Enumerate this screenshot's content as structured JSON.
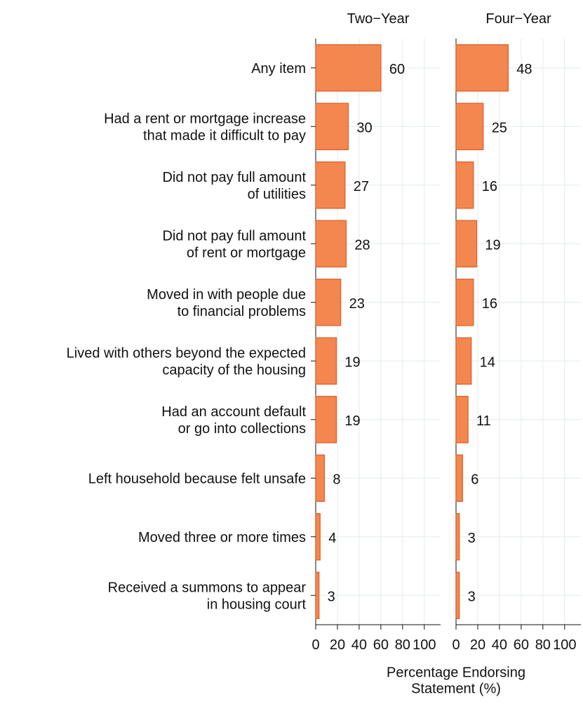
{
  "chart_data": {
    "type": "bar",
    "orientation": "horizontal",
    "categories": [
      "Any item",
      "Had a rent or mortgage increase\nthat made it difficult to pay",
      "Did not pay full amount\nof utilities",
      "Did not pay full amount\nof rent or mortgage",
      "Moved in with people due\nto financial problems",
      "Lived with others beyond the expected\ncapacity of the housing",
      "Had an account default\nor go into collections",
      "Left household because felt unsafe",
      "Moved three or more times",
      "Received a summons to appear\nin housing court"
    ],
    "series": [
      {
        "name": "Two−Year",
        "color": "#f4874f",
        "values": [
          60,
          30,
          27,
          28,
          23,
          19,
          19,
          8,
          4,
          3
        ]
      },
      {
        "name": "Four−Year",
        "color": "#f4874f",
        "values": [
          48,
          25,
          16,
          19,
          16,
          14,
          11,
          6,
          3,
          3
        ]
      }
    ],
    "xlabel": "Percentage Endorsing\nStatement (%)",
    "xlim": [
      0,
      115
    ],
    "xticks": [
      0,
      20,
      40,
      60,
      80,
      100
    ],
    "grid": true
  }
}
